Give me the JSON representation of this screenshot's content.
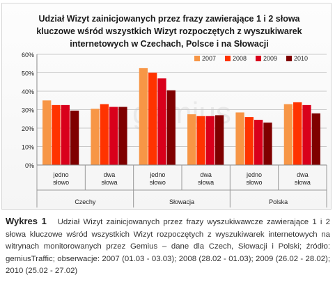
{
  "chart_data": {
    "type": "bar",
    "title": "Udział Wizyt zainicjowanych przez frazy zawierające 1 i 2 słowa kluczowe wśród wszystkich Wizyt rozpoczętych z wyszukiwarek internetowych w Czechach, Polsce i na Słowacji",
    "title_lines": [
      "Udział Wizyt zainicjowanych przez frazy zawierające 1 i 2 słowa",
      "kluczowe wśród wszystkich Wizyt rozpoczętych z wyszukiwarek",
      "internetowych w Czechach, Polsce i na Słowacji"
    ],
    "categories": [
      {
        "sub": [
          "jedno",
          "słowo"
        ],
        "group": "Czechy"
      },
      {
        "sub": [
          "dwa",
          "słowa"
        ],
        "group": "Czechy"
      },
      {
        "sub": [
          "jedno",
          "słowo"
        ],
        "group": "Słowacja"
      },
      {
        "sub": [
          "dwa",
          "słowa"
        ],
        "group": "Słowacja"
      },
      {
        "sub": [
          "jedno",
          "słowo"
        ],
        "group": "Polska"
      },
      {
        "sub": [
          "dwa",
          "słowa"
        ],
        "group": "Polska"
      }
    ],
    "groups": [
      "Czechy",
      "Słowacja",
      "Polska"
    ],
    "series": [
      {
        "name": "2007",
        "color": "#f79646",
        "values": [
          35,
          30.5,
          52.5,
          27.5,
          28.5,
          33
        ]
      },
      {
        "name": "2008",
        "color": "#ff3300",
        "values": [
          32.5,
          33,
          50,
          26.5,
          26,
          34
        ]
      },
      {
        "name": "2009",
        "color": "#d9001b",
        "values": [
          32.5,
          31.5,
          47,
          26.5,
          24.5,
          32.5
        ]
      },
      {
        "name": "2010",
        "color": "#7f0000",
        "values": [
          29.5,
          31.5,
          40.5,
          27,
          23,
          28
        ]
      }
    ],
    "ylim": [
      0,
      60
    ],
    "yticks": [
      0,
      10,
      20,
      30,
      40,
      50,
      60
    ],
    "ytick_labels": [
      "0%",
      "10%",
      "20%",
      "30%",
      "40%",
      "50%",
      "60%"
    ],
    "grid": true,
    "legend": "top-right",
    "watermark": "gemius"
  },
  "caption": {
    "label": "Wykres 1",
    "text": "Udział Wizyt zainicjowanych przez frazy wyszukiwawcze zawierające 1 i 2 słowa kluczowe wśród wszystkich Wizyt rozpoczętych z wyszukiwarek internetowych na witrynach monitorowanych przez Gemius – dane dla Czech, Słowacji i Polski; źródło: gemiusTraffic; obserwacje: 2007 (01.03 - 03.03); 2008 (28.02 - 01.03); 2009 (26.02 - 28.02); 2010 (25.02 - 27.02)"
  }
}
